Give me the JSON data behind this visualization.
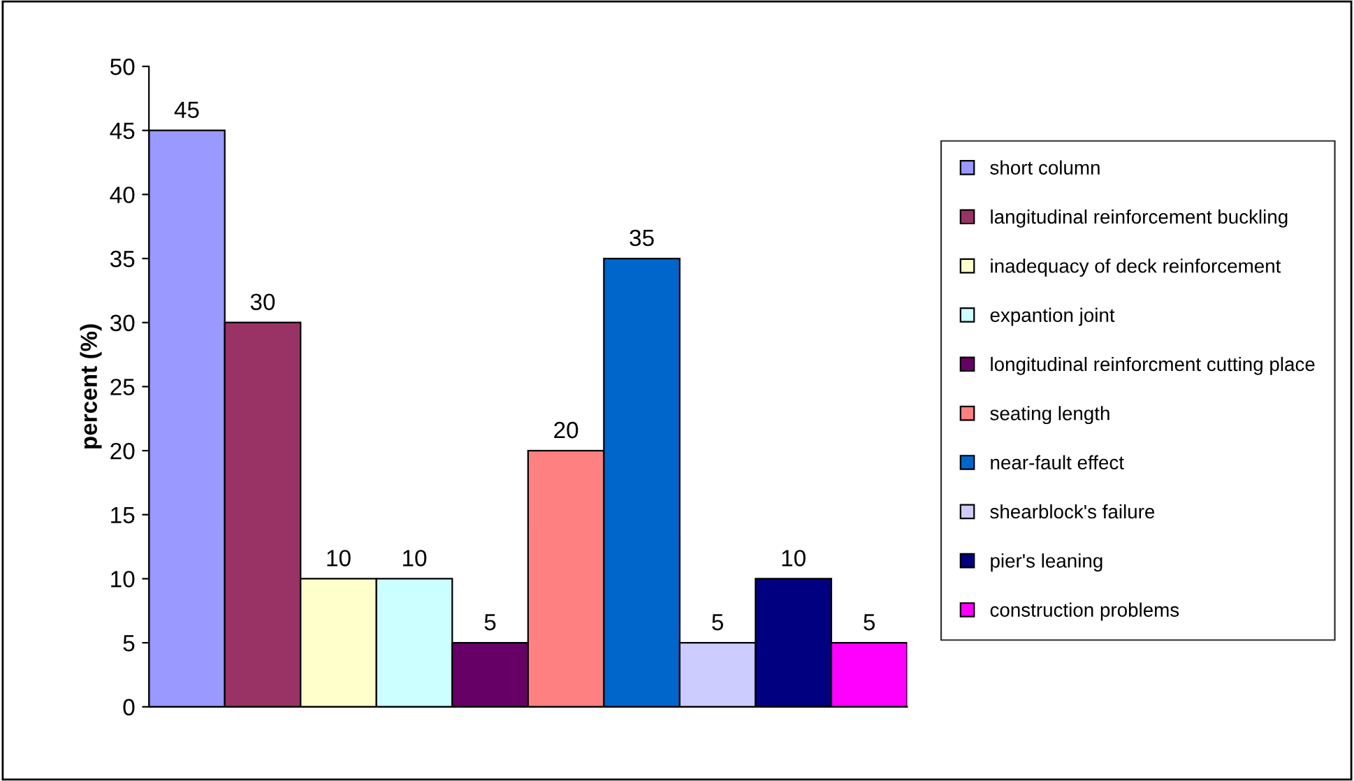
{
  "chart_data": {
    "type": "bar",
    "ylabel": "percent (%)",
    "categories": [
      null
    ],
    "series": [
      {
        "name": "short column",
        "color": "#9999ff",
        "values": [
          45
        ]
      },
      {
        "name": "langitudinal reinforcement buckling",
        "color": "#993366",
        "values": [
          30
        ]
      },
      {
        "name": "inadequacy of deck reinforcement",
        "color": "#ffffcc",
        "values": [
          10
        ]
      },
      {
        "name": "expantion joint",
        "color": "#ccffff",
        "values": [
          10
        ]
      },
      {
        "name": "longitudinal reinforcment cutting place",
        "color": "#660066",
        "values": [
          5
        ]
      },
      {
        "name": "seating length",
        "color": "#ff8080",
        "values": [
          20
        ]
      },
      {
        "name": "near-fault effect",
        "color": "#0066cc",
        "values": [
          35
        ]
      },
      {
        "name": "shearblock's failure",
        "color": "#ccccff",
        "values": [
          5
        ]
      },
      {
        "name": "pier's leaning",
        "color": "#000080",
        "values": [
          10
        ]
      },
      {
        "name": "construction problems",
        "color": "#ff00ff",
        "values": [
          5
        ]
      }
    ],
    "ylim": [
      0,
      50
    ],
    "yticks": [
      0,
      5,
      10,
      15,
      20,
      25,
      30,
      35,
      40,
      45,
      50
    ],
    "data_labels": true,
    "grid": false,
    "legend": "right"
  }
}
